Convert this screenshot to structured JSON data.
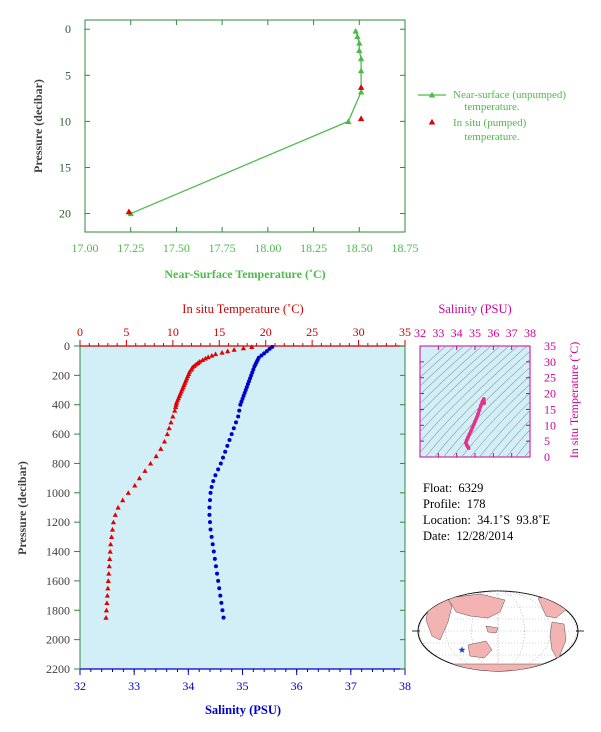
{
  "chart_data": [
    {
      "type": "line",
      "xlabel": "Near-Surface Temperature (˚C)",
      "ylabel": "Pressure (decibar)",
      "xlim": [
        17.0,
        18.75
      ],
      "ylim": [
        22,
        -1
      ],
      "x_ticks": [
        "17.00",
        "17.25",
        "17.50",
        "17.75",
        "18.00",
        "18.25",
        "18.50",
        "18.75"
      ],
      "y_ticks": [
        "0",
        "5",
        "10",
        "15",
        "20"
      ],
      "legend": [
        "Near-surface (unpumped)\ntemperature.",
        "In situ (pumped)\ntemperature."
      ],
      "legend_position": "right",
      "series": [
        {
          "name": "Near-surface (unpumped) temperature.",
          "color": "#4dbb4a",
          "marker": "triangle",
          "points": [
            [
              18.48,
              0.2
            ],
            [
              18.49,
              0.8
            ],
            [
              18.5,
              1.5
            ],
            [
              18.5,
              2.3
            ],
            [
              18.51,
              3.2
            ],
            [
              18.51,
              4.5
            ],
            [
              18.51,
              6.8
            ],
            [
              18.44,
              10.0
            ],
            [
              17.25,
              20.0
            ]
          ]
        },
        {
          "name": "In situ (pumped) temperature.",
          "color": "#e00000",
          "marker": "triangle",
          "points": [
            [
              18.51,
              6.3
            ],
            [
              18.51,
              9.7
            ],
            [
              17.24,
              19.8
            ]
          ]
        }
      ]
    },
    {
      "type": "scatter",
      "ylabel": "Pressure (decibar)",
      "top_xlabel": "In situ Temperature (˚C)",
      "bottom_xlabel": "Salinity (PSU)",
      "temp_ticks": [
        "0",
        "5",
        "10",
        "15",
        "20",
        "25",
        "30",
        "35"
      ],
      "sal_ticks": [
        "32",
        "33",
        "34",
        "35",
        "36",
        "37",
        "38"
      ],
      "y_ticks": [
        "0",
        "200",
        "400",
        "600",
        "800",
        "1000",
        "1200",
        "1400",
        "1600",
        "1800",
        "2000",
        "2200"
      ],
      "temp_lim": [
        0,
        35
      ],
      "sal_lim": [
        32,
        38
      ],
      "ylim": [
        2200,
        0
      ],
      "background": "#d2eef7",
      "series": [
        {
          "name": "temperature",
          "color": "#e00000",
          "marker": "triangle",
          "points": [
            [
              18.5,
              6
            ],
            [
              17.6,
              15
            ],
            [
              16.6,
              25
            ],
            [
              15.9,
              35
            ],
            [
              15.3,
              45
            ],
            [
              14.6,
              55
            ],
            [
              14.2,
              65
            ],
            [
              13.8,
              75
            ],
            [
              13.5,
              85
            ],
            [
              13.2,
              95
            ],
            [
              12.9,
              105
            ],
            [
              12.7,
              115
            ],
            [
              12.5,
              125
            ],
            [
              12.3,
              135
            ],
            [
              12.1,
              145
            ],
            [
              12.0,
              160
            ],
            [
              11.8,
              175
            ],
            [
              11.7,
              190
            ],
            [
              11.6,
              205
            ],
            [
              11.5,
              220
            ],
            [
              11.4,
              235
            ],
            [
              11.3,
              250
            ],
            [
              11.2,
              265
            ],
            [
              11.1,
              280
            ],
            [
              11.0,
              295
            ],
            [
              10.9,
              310
            ],
            [
              10.8,
              325
            ],
            [
              10.7,
              340
            ],
            [
              10.6,
              355
            ],
            [
              10.5,
              370
            ],
            [
              10.4,
              385
            ],
            [
              10.35,
              400
            ],
            [
              10.3,
              415
            ],
            [
              10.2,
              440
            ],
            [
              10.0,
              480
            ],
            [
              9.8,
              520
            ],
            [
              9.6,
              560
            ],
            [
              9.4,
              600
            ],
            [
              9.1,
              650
            ],
            [
              8.7,
              700
            ],
            [
              8.2,
              750
            ],
            [
              7.6,
              800
            ],
            [
              7.0,
              850
            ],
            [
              6.4,
              900
            ],
            [
              5.9,
              950
            ],
            [
              5.2,
              1000
            ],
            [
              4.6,
              1050
            ],
            [
              4.1,
              1100
            ],
            [
              3.8,
              1150
            ],
            [
              3.6,
              1200
            ],
            [
              3.5,
              1250
            ],
            [
              3.4,
              1300
            ],
            [
              3.3,
              1350
            ],
            [
              3.25,
              1400
            ],
            [
              3.2,
              1450
            ],
            [
              3.15,
              1500
            ],
            [
              3.1,
              1550
            ],
            [
              3.05,
              1600
            ],
            [
              3.0,
              1650
            ],
            [
              2.95,
              1700
            ],
            [
              2.9,
              1750
            ],
            [
              2.85,
              1800
            ],
            [
              2.8,
              1850
            ]
          ]
        },
        {
          "name": "salinity",
          "color": "#0000cc",
          "marker": "circle",
          "points": [
            [
              35.55,
              6
            ],
            [
              35.5,
              20
            ],
            [
              35.45,
              35
            ],
            [
              35.4,
              50
            ],
            [
              35.35,
              65
            ],
            [
              35.3,
              80
            ],
            [
              35.28,
              95
            ],
            [
              35.26,
              110
            ],
            [
              35.24,
              125
            ],
            [
              35.22,
              140
            ],
            [
              35.2,
              160
            ],
            [
              35.18,
              180
            ],
            [
              35.16,
              200
            ],
            [
              35.14,
              220
            ],
            [
              35.12,
              240
            ],
            [
              35.1,
              260
            ],
            [
              35.08,
              280
            ],
            [
              35.06,
              300
            ],
            [
              35.04,
              320
            ],
            [
              35.02,
              340
            ],
            [
              35.0,
              360
            ],
            [
              34.98,
              380
            ],
            [
              34.96,
              400
            ],
            [
              34.94,
              440
            ],
            [
              34.92,
              480
            ],
            [
              34.88,
              520
            ],
            [
              34.84,
              560
            ],
            [
              34.8,
              600
            ],
            [
              34.76,
              640
            ],
            [
              34.72,
              680
            ],
            [
              34.68,
              720
            ],
            [
              34.64,
              760
            ],
            [
              34.6,
              800
            ],
            [
              34.55,
              840
            ],
            [
              34.5,
              880
            ],
            [
              34.46,
              920
            ],
            [
              34.43,
              960
            ],
            [
              34.41,
              1000
            ],
            [
              34.4,
              1050
            ],
            [
              34.39,
              1100
            ],
            [
              34.39,
              1150
            ],
            [
              34.4,
              1200
            ],
            [
              34.41,
              1250
            ],
            [
              34.43,
              1300
            ],
            [
              34.45,
              1350
            ],
            [
              34.47,
              1400
            ],
            [
              34.49,
              1450
            ],
            [
              34.51,
              1500
            ],
            [
              34.53,
              1550
            ],
            [
              34.55,
              1600
            ],
            [
              34.57,
              1650
            ],
            [
              34.59,
              1700
            ],
            [
              34.61,
              1750
            ],
            [
              34.63,
              1800
            ],
            [
              34.65,
              1850
            ]
          ]
        }
      ]
    },
    {
      "type": "scatter",
      "xlabel": "Salinity (PSU)",
      "ylabel": "In situ Temperature (˚C)",
      "x_ticks": [
        "32",
        "33",
        "34",
        "35",
        "36",
        "37",
        "38"
      ],
      "y_ticks": [
        "0",
        "5",
        "10",
        "15",
        "20",
        "25",
        "30",
        "35"
      ],
      "xlim": [
        32,
        38
      ],
      "ylim": [
        0,
        35
      ],
      "contour_lines": true,
      "series": [
        {
          "name": "T-S",
          "color": "#e6318a",
          "points": [
            [
              34.65,
              2.8
            ],
            [
              34.6,
              3.3
            ],
            [
              34.55,
              3.8
            ],
            [
              34.5,
              4.5
            ],
            [
              34.55,
              5.3
            ],
            [
              34.62,
              6.2
            ],
            [
              34.7,
              7.2
            ],
            [
              34.78,
              8.2
            ],
            [
              34.86,
              9.3
            ],
            [
              34.94,
              10.3
            ],
            [
              35.0,
              11.2
            ],
            [
              35.08,
              12.2
            ],
            [
              35.16,
              13.5
            ],
            [
              35.24,
              14.8
            ],
            [
              35.32,
              16.2
            ],
            [
              35.4,
              17.4
            ],
            [
              35.48,
              18.3
            ],
            [
              35.5,
              17.0
            ]
          ]
        }
      ]
    }
  ],
  "info": {
    "float": "Float:  6329",
    "profile": "Profile:  178",
    "location": "Location:  34.1˚S  93.8˚E",
    "date": "Date:  12/28/2014"
  },
  "map": {
    "land_color": "#f4b3b3",
    "ocean_color": "#ffffff",
    "marker_color": "#1a3fd0",
    "marker_position": {
      "lat": -34.1,
      "lon": 93.8
    }
  },
  "footer_tag": " "
}
